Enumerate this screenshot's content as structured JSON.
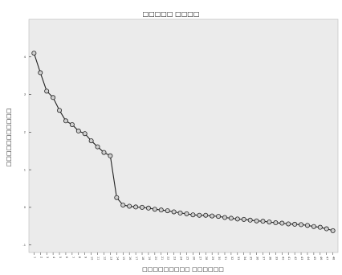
{
  "chart_data": {
    "type": "line",
    "title": "□□□□□ □□□□",
    "xlabel": "□□□□□□□□□ □□□□□□",
    "ylabel": "□□□□□□□□□□□",
    "x": [
      1,
      2,
      3,
      4,
      5,
      6,
      7,
      8,
      9,
      10,
      11,
      12,
      13,
      14,
      15,
      16,
      17,
      18,
      19,
      20,
      21,
      22,
      23,
      24,
      25,
      26,
      27,
      28,
      29,
      30,
      31,
      32,
      33,
      34,
      35,
      36,
      37,
      38,
      39,
      40,
      41,
      42,
      43,
      44,
      45,
      46,
      47,
      48
    ],
    "y": [
      4.1,
      3.58,
      3.09,
      2.92,
      2.58,
      2.3,
      2.2,
      2.03,
      1.96,
      1.77,
      1.61,
      1.46,
      1.37,
      0.26,
      0.06,
      0.03,
      0.01,
      0.0,
      -0.02,
      -0.05,
      -0.07,
      -0.09,
      -0.12,
      -0.15,
      -0.17,
      -0.2,
      -0.21,
      -0.21,
      -0.23,
      -0.24,
      -0.27,
      -0.29,
      -0.31,
      -0.32,
      -0.34,
      -0.36,
      -0.37,
      -0.39,
      -0.41,
      -0.42,
      -0.44,
      -0.45,
      -0.46,
      -0.48,
      -0.51,
      -0.53,
      -0.57,
      -0.62
    ],
    "yticks": [
      -1,
      0,
      1,
      2,
      3,
      4
    ],
    "ylim": [
      -1.2,
      5.0
    ],
    "xlim": [
      0.2,
      48.8
    ],
    "grid": false,
    "legend": "none",
    "colors": {
      "plot_background": "#ebebeb",
      "line": "#222222",
      "marker_fill": "#cfcfcf",
      "axis": "#333333"
    }
  }
}
